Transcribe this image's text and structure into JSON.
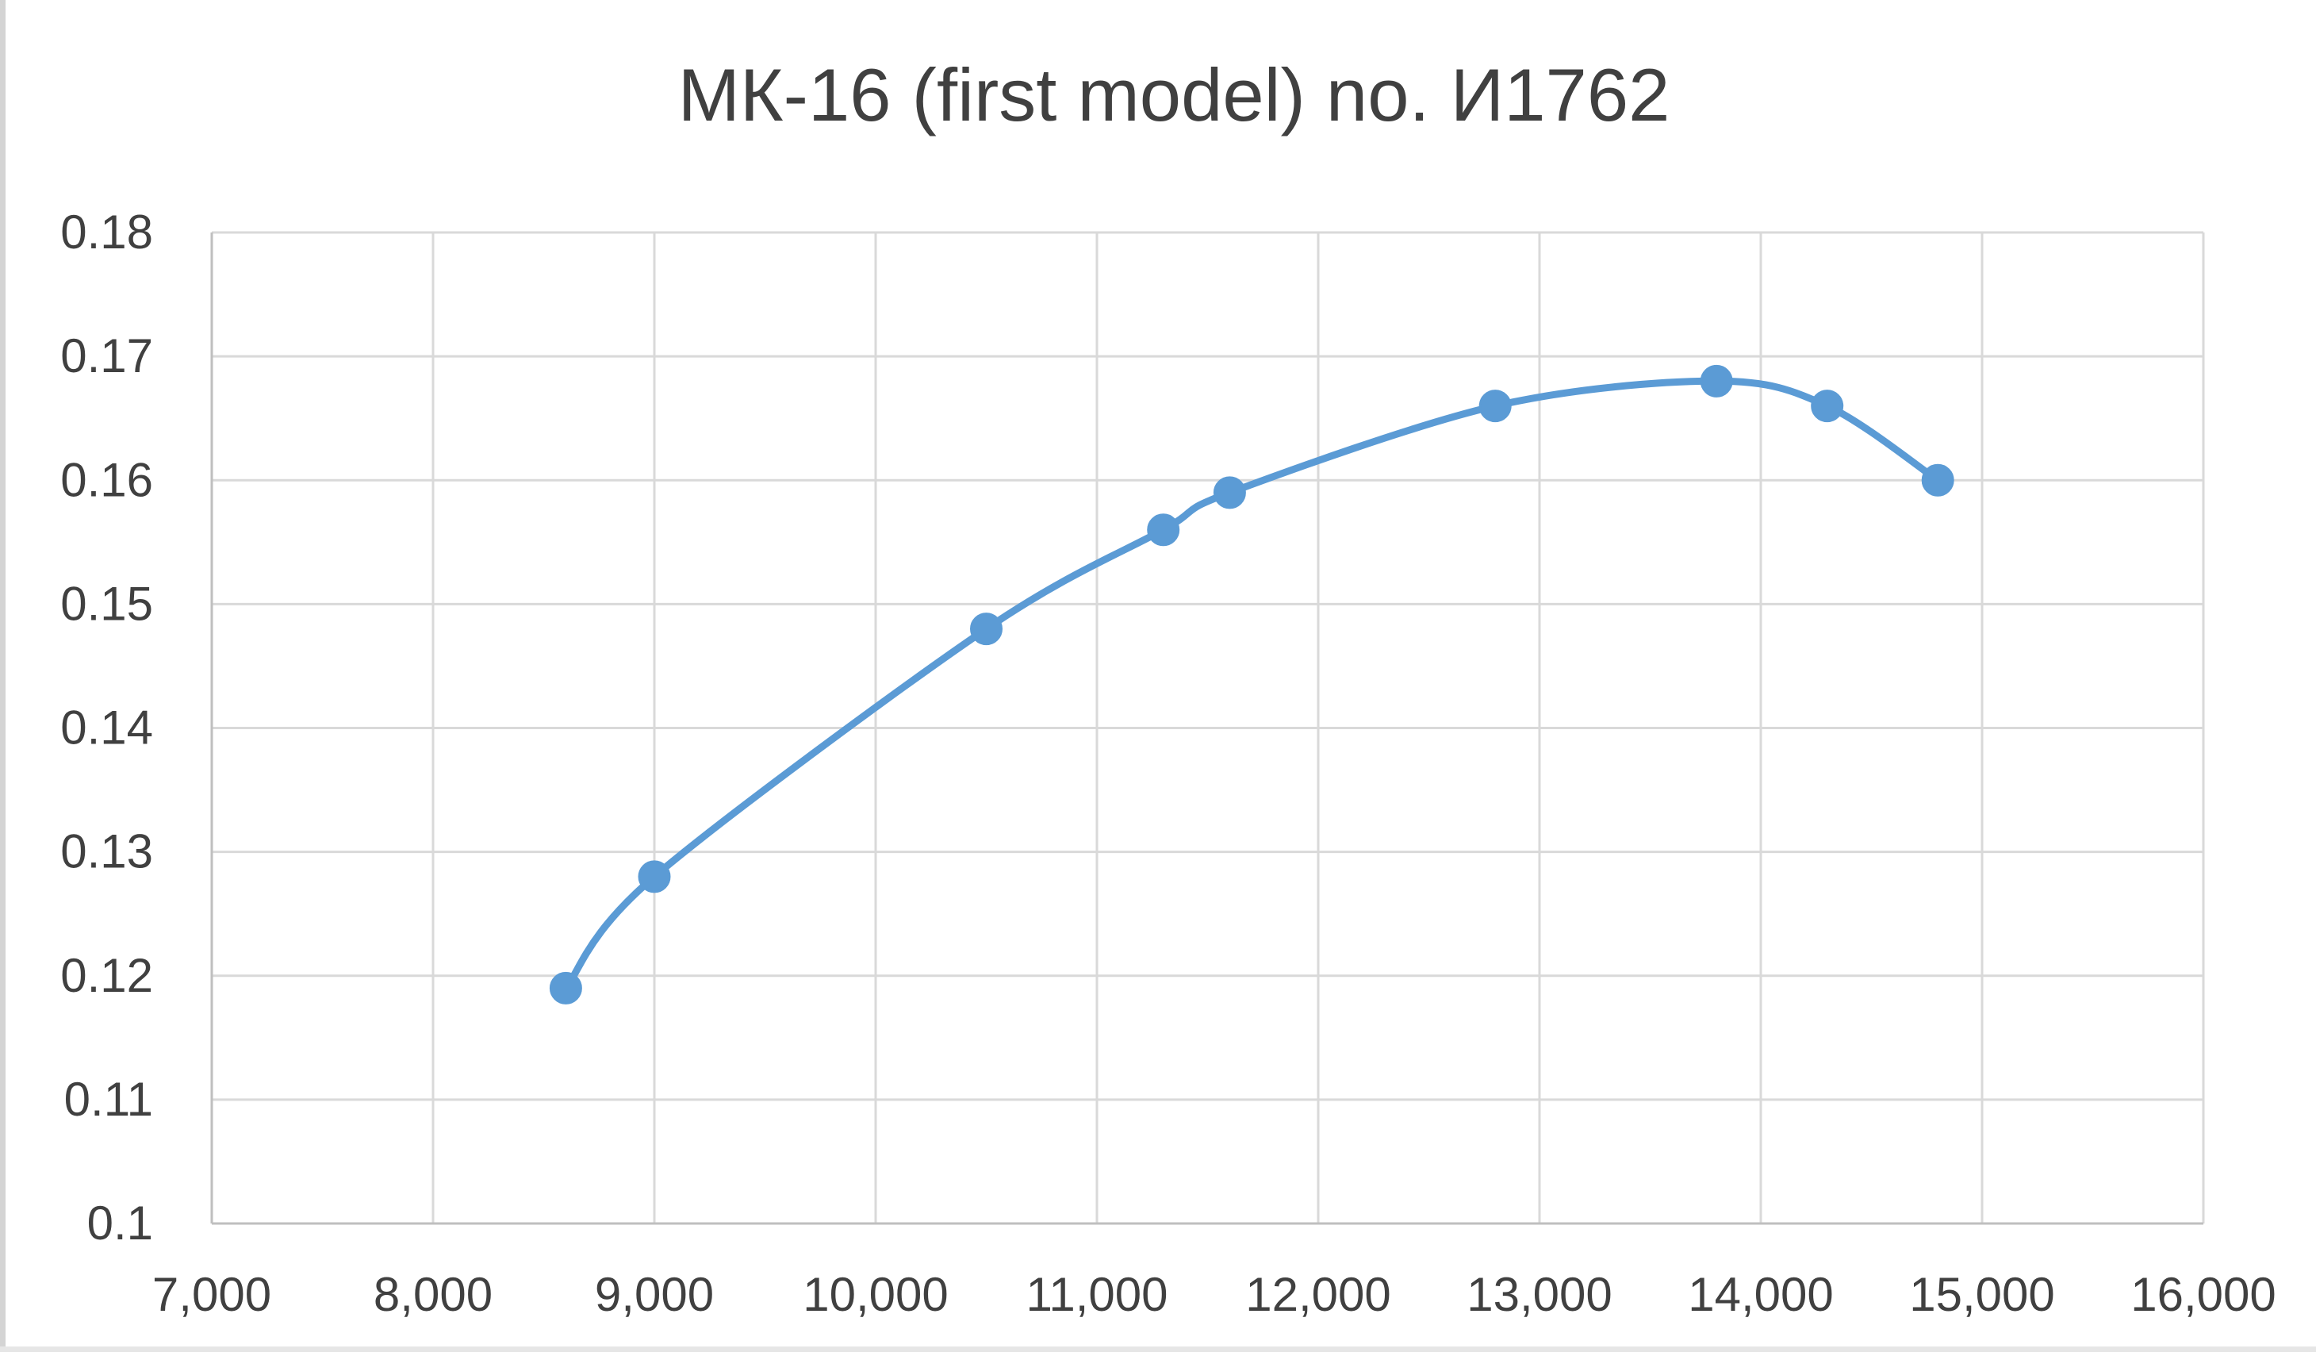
{
  "chart_data": {
    "type": "line",
    "title": "МК-16 (first model) no. И1762",
    "xlabel": "",
    "ylabel": "",
    "xlim": [
      7000,
      16000
    ],
    "ylim": [
      0.1,
      0.18
    ],
    "x_ticks": [
      7000,
      8000,
      9000,
      10000,
      11000,
      12000,
      13000,
      14000,
      15000,
      16000
    ],
    "x_tick_labels": [
      "7,000",
      "8,000",
      "9,000",
      "10,000",
      "11,000",
      "12,000",
      "13,000",
      "14,000",
      "15,000",
      "16,000"
    ],
    "y_ticks": [
      0.1,
      0.11,
      0.12,
      0.13,
      0.14,
      0.15,
      0.16,
      0.17,
      0.18
    ],
    "y_tick_labels": [
      "0.1",
      "0.11",
      "0.12",
      "0.13",
      "0.14",
      "0.15",
      "0.16",
      "0.17",
      "0.18"
    ],
    "grid": true,
    "legend": "none",
    "series": [
      {
        "color": "#5b9bd5",
        "points": [
          {
            "x": 8600,
            "y": 0.119
          },
          {
            "x": 9000,
            "y": 0.128
          },
          {
            "x": 10500,
            "y": 0.148
          },
          {
            "x": 11300,
            "y": 0.156
          },
          {
            "x": 11600,
            "y": 0.159
          },
          {
            "x": 12800,
            "y": 0.166
          },
          {
            "x": 13800,
            "y": 0.168
          },
          {
            "x": 14300,
            "y": 0.166
          },
          {
            "x": 14800,
            "y": 0.16
          }
        ]
      }
    ]
  }
}
